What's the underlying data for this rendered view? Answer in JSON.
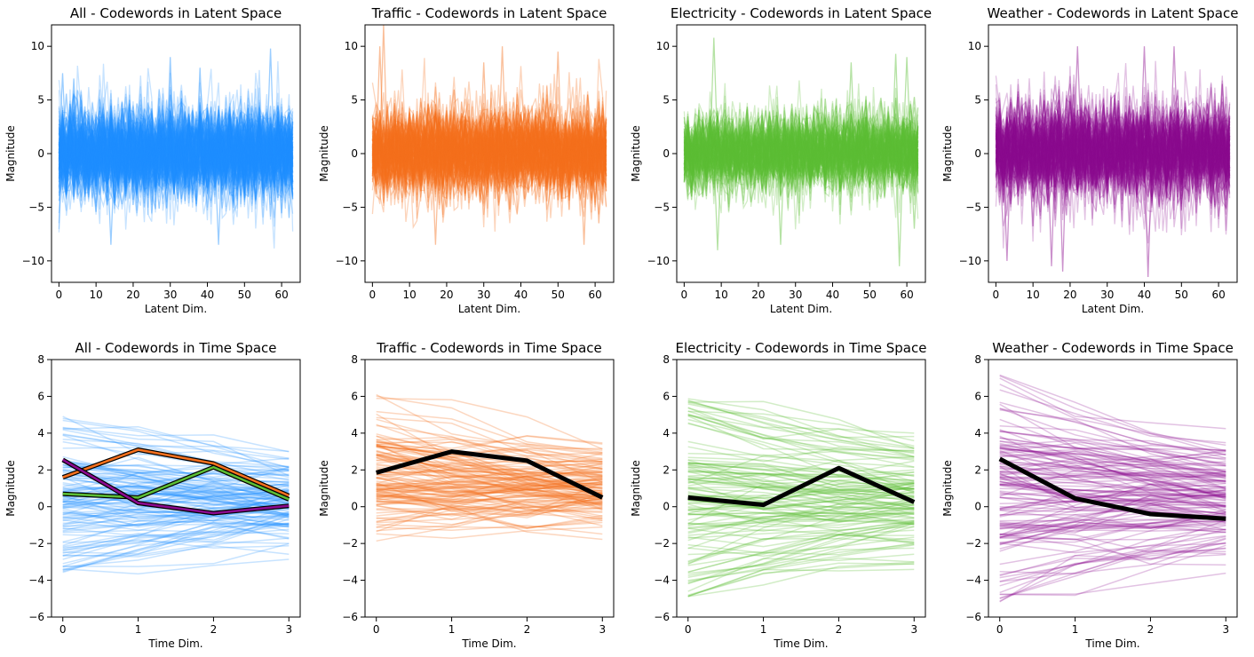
{
  "chart_data": [
    {
      "type": "line",
      "title": "All - Codewords in Latent Space",
      "xlabel": "Latent Dim.",
      "ylabel": "Magnitude",
      "xlim": [
        -2,
        65
      ],
      "ylim": [
        -12,
        12
      ],
      "xticks": [
        0,
        10,
        20,
        30,
        40,
        50,
        60
      ],
      "yticks": [
        -10,
        -5,
        0,
        5,
        10
      ],
      "color": "#1e90ff",
      "n_lines": 200,
      "alpha": 0.25,
      "seed": 11,
      "center": [
        0.0,
        0.2,
        -0.4,
        0.5,
        0.1,
        -0.3,
        0.6,
        -0.2
      ],
      "spread": 1.8,
      "peaks": [
        [
          1,
          7.5
        ],
        [
          4,
          7.0
        ],
        [
          14,
          -8.5
        ],
        [
          30,
          9.0
        ],
        [
          38,
          8.0
        ],
        [
          43,
          -8.5
        ],
        [
          57,
          9.8
        ],
        [
          62,
          -6.0
        ]
      ],
      "grid": false
    },
    {
      "type": "line",
      "title": "Traffic - Codewords in Latent Space",
      "xlabel": "Latent Dim.",
      "ylabel": "Magnitude",
      "xlim": [
        -2,
        65
      ],
      "ylim": [
        -12,
        12
      ],
      "xticks": [
        0,
        10,
        20,
        30,
        40,
        50,
        60
      ],
      "yticks": [
        -10,
        -5,
        0,
        5,
        10
      ],
      "color": "#f5701e",
      "n_lines": 150,
      "alpha": 0.3,
      "seed": 22,
      "center": [
        0.3,
        0.0,
        0.4,
        -0.2,
        0.2,
        0.1,
        0.3,
        0.0
      ],
      "spread": 1.7,
      "peaks": [
        [
          2,
          10.0
        ],
        [
          3,
          12.0
        ],
        [
          17,
          -8.5
        ],
        [
          30,
          8.5
        ],
        [
          35,
          10.0
        ],
        [
          50,
          9.5
        ],
        [
          57,
          -8.5
        ],
        [
          61,
          -6.5
        ]
      ],
      "grid": false
    },
    {
      "type": "line",
      "title": "Electricity - Codewords in Latent Space",
      "xlabel": "Latent Dim.",
      "ylabel": "Magnitude",
      "xlim": [
        -2,
        65
      ],
      "ylim": [
        -12,
        12
      ],
      "xticks": [
        0,
        10,
        20,
        30,
        40,
        50,
        60
      ],
      "yticks": [
        -10,
        -5,
        0,
        5,
        10
      ],
      "color": "#5cbe35",
      "n_lines": 150,
      "alpha": 0.28,
      "seed": 33,
      "center": [
        0.2,
        0.5,
        -0.3,
        0.4,
        0.0,
        0.3,
        -0.2,
        0.4
      ],
      "spread": 1.6,
      "peaks": [
        [
          8,
          10.8
        ],
        [
          9,
          -9.0
        ],
        [
          26,
          -8.5
        ],
        [
          45,
          8.5
        ],
        [
          57,
          9.3
        ],
        [
          58,
          -10.5
        ],
        [
          60,
          9.0
        ],
        [
          62,
          -7.0
        ]
      ],
      "grid": false
    },
    {
      "type": "line",
      "title": "Weather - Codewords in Latent Space",
      "xlabel": "Latent Dim.",
      "ylabel": "Magnitude",
      "xlim": [
        -2,
        65
      ],
      "ylim": [
        -12,
        12
      ],
      "xticks": [
        0,
        10,
        20,
        30,
        40,
        50,
        60
      ],
      "yticks": [
        -10,
        -5,
        0,
        5,
        10
      ],
      "color": "#8b0a8f",
      "n_lines": 160,
      "alpha": 0.25,
      "seed": 44,
      "center": [
        0.4,
        0.8,
        -0.4,
        0.3,
        0.1,
        0.5,
        -0.3,
        0.4
      ],
      "spread": 2.0,
      "peaks": [
        [
          3,
          -10.0
        ],
        [
          15,
          -10.5
        ],
        [
          18,
          -11.0
        ],
        [
          22,
          10.0
        ],
        [
          40,
          10.0
        ],
        [
          41,
          -11.5
        ],
        [
          48,
          10.0
        ],
        [
          61,
          6.5
        ]
      ],
      "grid": false
    },
    {
      "type": "line",
      "title": "All - Codewords in Time Space",
      "xlabel": "Time Dim.",
      "ylabel": "Magnitude",
      "xlim": [
        -0.15,
        3.15
      ],
      "ylim": [
        -6,
        8
      ],
      "xticks": [
        0,
        1,
        2,
        3
      ],
      "yticks": [
        -6,
        -4,
        -2,
        0,
        2,
        4,
        6,
        8
      ],
      "color": "#1e90ff",
      "n_lines": 130,
      "alpha": 0.25,
      "seed": 55,
      "start_range": [
        -3.6,
        5.1
      ],
      "highlights": [
        {
          "values": [
            1.6,
            3.1,
            2.35,
            0.6
          ],
          "color": "#f5701e"
        },
        {
          "values": [
            0.7,
            0.5,
            2.15,
            0.4
          ],
          "color": "#5cbe35"
        },
        {
          "values": [
            2.55,
            0.2,
            -0.35,
            0.05
          ],
          "color": "#8b0a8f"
        }
      ],
      "grid": false
    },
    {
      "type": "line",
      "title": "Traffic - Codewords in Time Space",
      "xlabel": "Time Dim.",
      "ylabel": "Magnitude",
      "xlim": [
        -0.15,
        3.15
      ],
      "ylim": [
        -6,
        8
      ],
      "xticks": [
        0,
        1,
        2,
        3
      ],
      "yticks": [
        -6,
        -4,
        -2,
        0,
        2,
        4,
        6,
        8
      ],
      "color": "#f5701e",
      "n_lines": 130,
      "alpha": 0.28,
      "seed": 66,
      "start_range": [
        -2.0,
        6.1
      ],
      "highlights": [
        {
          "values": [
            1.85,
            3.0,
            2.5,
            0.5
          ],
          "color": "#f5701e"
        }
      ],
      "grid": false
    },
    {
      "type": "line",
      "title": "Electricity - Codewords in Time Space",
      "xlabel": "Time Dim.",
      "ylabel": "Magnitude",
      "xlim": [
        -0.15,
        3.15
      ],
      "ylim": [
        -6,
        8
      ],
      "xticks": [
        0,
        1,
        2,
        3
      ],
      "yticks": [
        -6,
        -4,
        -2,
        0,
        2,
        4,
        6,
        8
      ],
      "color": "#5cbe35",
      "n_lines": 120,
      "alpha": 0.28,
      "seed": 77,
      "start_range": [
        -4.9,
        6.0
      ],
      "highlights": [
        {
          "values": [
            0.5,
            0.1,
            2.1,
            0.25
          ],
          "color": "#5cbe35"
        }
      ],
      "grid": false
    },
    {
      "type": "line",
      "title": "Weather - Codewords in Time Space",
      "xlabel": "Time Dim.",
      "ylabel": "Magnitude",
      "xlim": [
        -0.15,
        3.15
      ],
      "ylim": [
        -6,
        8
      ],
      "xticks": [
        0,
        1,
        2,
        3
      ],
      "yticks": [
        -6,
        -4,
        -2,
        0,
        2,
        4,
        6,
        8
      ],
      "color": "#8b0a8f",
      "n_lines": 140,
      "alpha": 0.25,
      "seed": 88,
      "start_range": [
        -5.2,
        7.2
      ],
      "highlights": [
        {
          "values": [
            2.6,
            0.45,
            -0.4,
            -0.65
          ],
          "color": "#8b0a8f"
        }
      ],
      "grid": false
    }
  ]
}
